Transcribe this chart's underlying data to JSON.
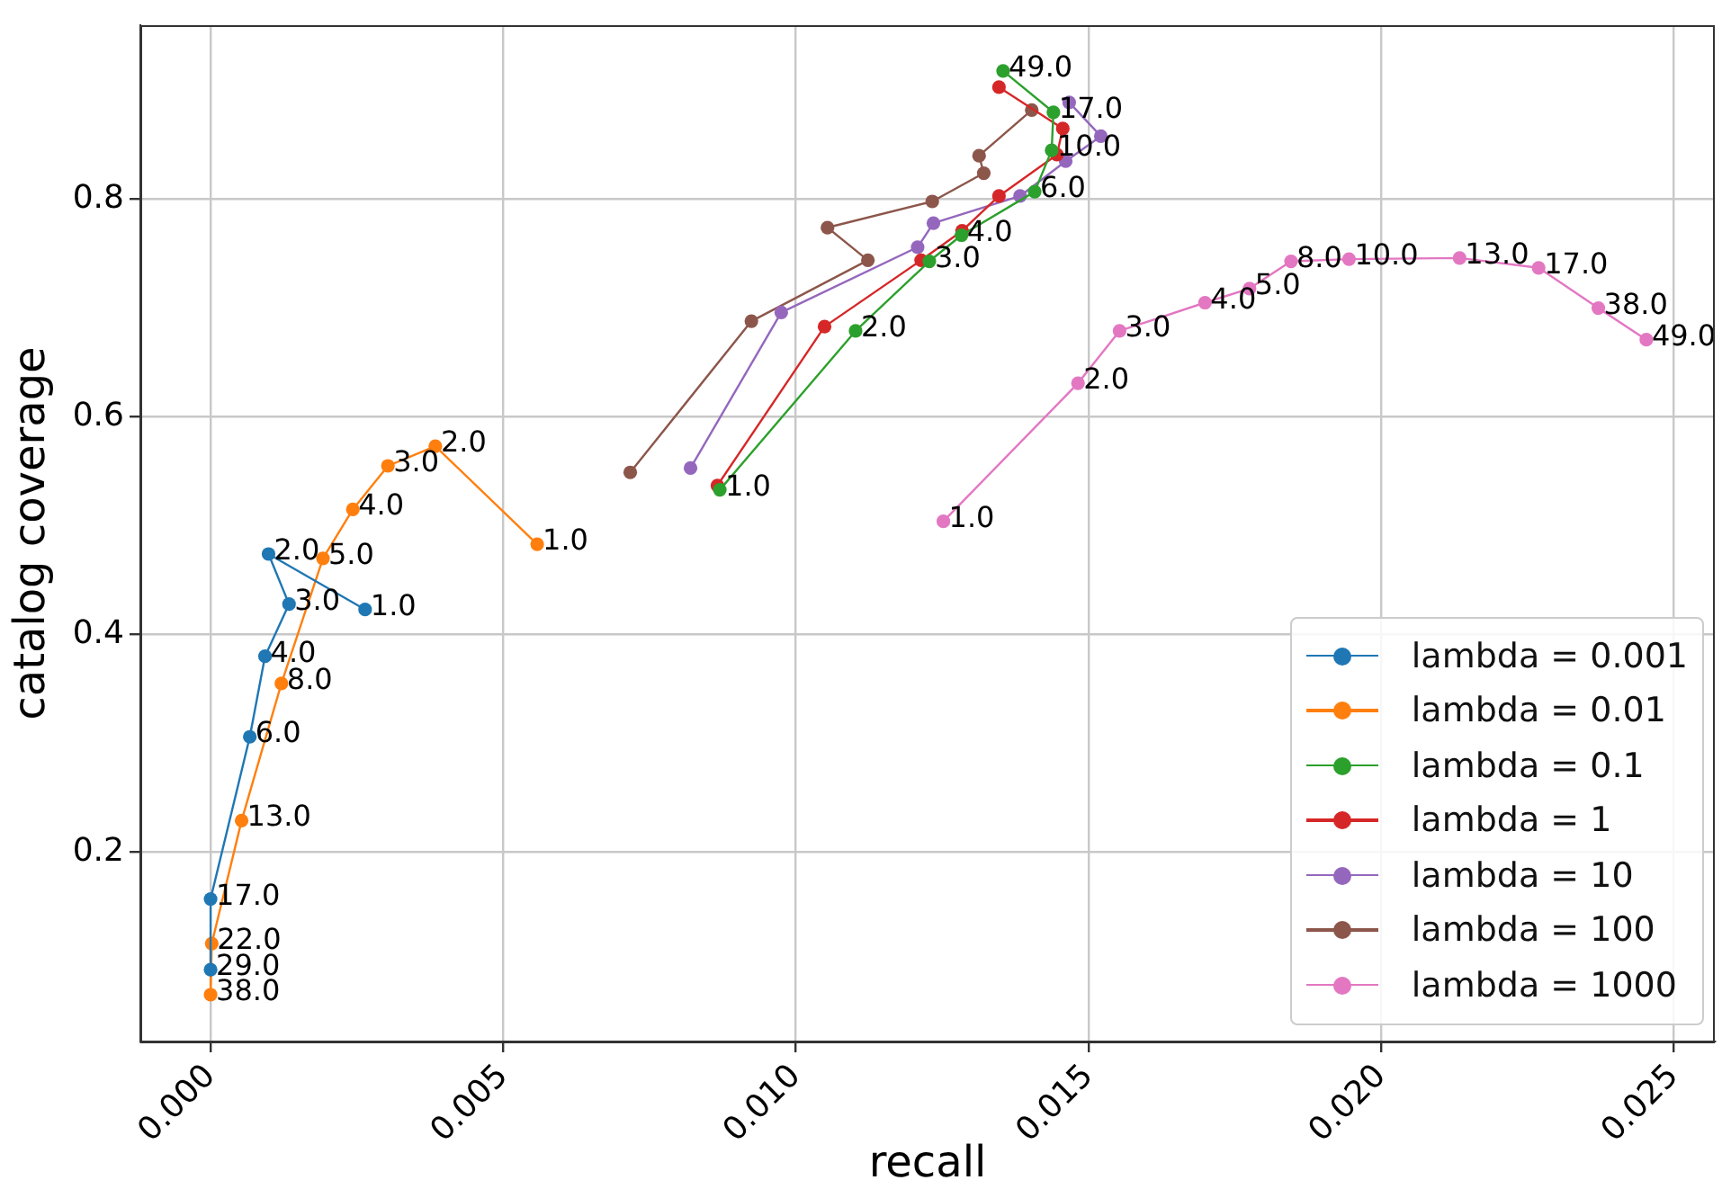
{
  "chart_data": {
    "type": "line",
    "xlabel": "recall",
    "ylabel": "catalog coverage",
    "xlim": [
      -0.0012,
      0.0257
    ],
    "ylim": [
      0.026,
      0.96
    ],
    "xticks": [
      {
        "value": 0,
        "label": "0.000"
      },
      0.005,
      {
        "value": 0.01,
        "label": "0.010"
      },
      0.015,
      {
        "value": 0.02,
        "label": "0.020"
      },
      0.025
    ],
    "yticks": [
      0.2,
      0.4,
      0.6,
      0.8
    ],
    "grid": true,
    "legend": "bottom right",
    "marker": "circle",
    "line_style": "solid",
    "series": [
      {
        "name": "lambda = 0.001",
        "color": "#1f77b4",
        "x": [
          0.00264,
          0.00099,
          0.00134,
          0.00093,
          0.00067,
          0.0,
          0.0
        ],
        "values": [
          0.423,
          0.474,
          0.428,
          0.38,
          0.306,
          0.157,
          0.092
        ]
      },
      {
        "name": "lambda = 0.01",
        "color": "#ff7f0e",
        "x": [
          0.00558,
          0.00384,
          0.00303,
          0.00243,
          0.00192,
          0.00121,
          0.00053,
          2e-05,
          0.0
        ],
        "values": [
          0.483,
          0.573,
          0.555,
          0.515,
          0.47,
          0.355,
          0.229,
          0.116,
          0.069
        ]
      },
      {
        "name": "lambda = 0.1",
        "color": "#2ca02c",
        "x": [
          0.0087,
          0.01102,
          0.01228,
          0.01283,
          0.01408,
          0.01437,
          0.0144,
          0.01354
        ],
        "values": [
          0.533,
          0.679,
          0.743,
          0.767,
          0.807,
          0.845,
          0.88,
          0.918
        ]
      },
      {
        "name": "lambda = 1",
        "color": "#d62728",
        "x": [
          0.00866,
          0.01049,
          0.01214,
          0.01284,
          0.01347,
          0.01446,
          0.01456,
          0.01347
        ],
        "values": [
          0.537,
          0.683,
          0.744,
          0.771,
          0.803,
          0.841,
          0.865,
          0.903
        ]
      },
      {
        "name": "lambda = 10",
        "color": "#9467bd",
        "x": [
          0.0082,
          0.00975,
          0.01208,
          0.01235,
          0.01383,
          0.01461,
          0.01521,
          0.01467
        ],
        "values": [
          0.553,
          0.696,
          0.756,
          0.778,
          0.803,
          0.835,
          0.858,
          0.889
        ]
      },
      {
        "name": "lambda = 100",
        "color": "#8c564b",
        "x": [
          0.00717,
          0.00924,
          0.01123,
          0.01054,
          0.01233,
          0.01321,
          0.01313,
          0.01403
        ],
        "values": [
          0.549,
          0.688,
          0.744,
          0.774,
          0.798,
          0.824,
          0.84,
          0.882
        ]
      },
      {
        "name": "lambda = 1000",
        "color": "#e377c2",
        "x": [
          0.01252,
          0.01482,
          0.01553,
          0.01699,
          0.01775,
          0.01846,
          0.01945,
          0.02134,
          0.02269,
          0.02371,
          0.02453
        ],
        "values": [
          0.504,
          0.631,
          0.679,
          0.705,
          0.718,
          0.743,
          0.745,
          0.746,
          0.737,
          0.7,
          0.671
        ]
      }
    ],
    "annotations": [
      {
        "text": "1.0",
        "x": 0.00264,
        "y": 0.423
      },
      {
        "text": "2.0",
        "x": 0.00099,
        "y": 0.474
      },
      {
        "text": "3.0",
        "x": 0.00134,
        "y": 0.428
      },
      {
        "text": "4.0",
        "x": 0.00093,
        "y": 0.38
      },
      {
        "text": "6.0",
        "x": 0.00067,
        "y": 0.306
      },
      {
        "text": "17.0",
        "x": 0.0,
        "y": 0.157
      },
      {
        "text": "29.0",
        "x": 0.0,
        "y": 0.092
      },
      {
        "text": "1.0",
        "x": 0.00558,
        "y": 0.483
      },
      {
        "text": "2.0",
        "x": 0.00384,
        "y": 0.573
      },
      {
        "text": "3.0",
        "x": 0.00303,
        "y": 0.555
      },
      {
        "text": "4.0",
        "x": 0.00243,
        "y": 0.515
      },
      {
        "text": "5.0",
        "x": 0.00192,
        "y": 0.47
      },
      {
        "text": "8.0",
        "x": 0.00121,
        "y": 0.355
      },
      {
        "text": "13.0",
        "x": 0.00053,
        "y": 0.229
      },
      {
        "text": "22.0",
        "x": 2e-05,
        "y": 0.116
      },
      {
        "text": "38.0",
        "x": 0.0,
        "y": 0.069
      },
      {
        "text": "1.0",
        "x": 0.0087,
        "y": 0.533
      },
      {
        "text": "2.0",
        "x": 0.01102,
        "y": 0.679
      },
      {
        "text": "3.0",
        "x": 0.01228,
        "y": 0.743
      },
      {
        "text": "4.0",
        "x": 0.01283,
        "y": 0.767
      },
      {
        "text": "6.0",
        "x": 0.01408,
        "y": 0.807
      },
      {
        "text": "10.0",
        "x": 0.01437,
        "y": 0.845
      },
      {
        "text": "17.0",
        "x": 0.0144,
        "y": 0.88
      },
      {
        "text": "49.0",
        "x": 0.01354,
        "y": 0.918
      },
      {
        "text": "1.0",
        "x": 0.01252,
        "y": 0.504
      },
      {
        "text": "2.0",
        "x": 0.01482,
        "y": 0.631
      },
      {
        "text": "3.0",
        "x": 0.01553,
        "y": 0.679
      },
      {
        "text": "4.0",
        "x": 0.01699,
        "y": 0.705
      },
      {
        "text": "5.0",
        "x": 0.01775,
        "y": 0.718
      },
      {
        "text": "8.0",
        "x": 0.01846,
        "y": 0.743
      },
      {
        "text": "10.0",
        "x": 0.01945,
        "y": 0.745
      },
      {
        "text": "13.0",
        "x": 0.02134,
        "y": 0.746
      },
      {
        "text": "17.0",
        "x": 0.02269,
        "y": 0.737
      },
      {
        "text": "38.0",
        "x": 0.02371,
        "y": 0.7
      },
      {
        "text": "49.0",
        "x": 0.02453,
        "y": 0.671
      }
    ]
  }
}
